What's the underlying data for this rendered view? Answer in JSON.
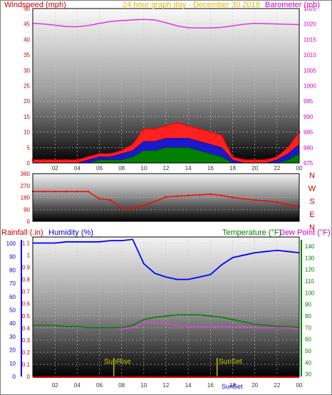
{
  "colors": {
    "wind": "#ff0000",
    "gust_fill": "#ff2020",
    "avg_fill": "#1a1acc",
    "low_fill": "#008000",
    "barometer": "#e040e0",
    "direction": "#ff0000",
    "humidity": "#0000ff",
    "temperature": "#008000",
    "dewpoint": "#e040e0",
    "title": "#e0b800",
    "axis_label_red": "#cc0000",
    "axis_label_blue": "#0000cc",
    "axis_label_green": "#008000",
    "axis_label_magenta": "#cc00cc",
    "sun_marker": "#c8c800"
  },
  "chart_data": [
    {
      "id": "wind_barometer",
      "type": "area",
      "title": "24 hour graph day - December 30 2018",
      "ylabel_left": "Windspeed (mph)",
      "ylabel_right": "Barometer (mb)",
      "ylim_left": [
        0,
        50
      ],
      "ylim_right": [
        975,
        1025
      ],
      "yticks_left": [
        "0",
        "5",
        "10",
        "15",
        "20",
        "25",
        "30",
        "35",
        "40",
        "45",
        "50"
      ],
      "yticks_right": [
        "975",
        "980",
        "985",
        "990",
        "995",
        "1000",
        "1005",
        "1010",
        "1015",
        "1020",
        "1025"
      ],
      "x_tick_labels": [
        "02",
        "04",
        "06",
        "08",
        "10",
        "12",
        "14",
        "16",
        "18",
        "20",
        "22",
        "00"
      ],
      "x": [
        0,
        1,
        2,
        3,
        4,
        5,
        6,
        7,
        8,
        9,
        10,
        11,
        12,
        13,
        14,
        15,
        16,
        17,
        18,
        19,
        20,
        21,
        22,
        23,
        24
      ],
      "series": [
        {
          "name": "Gust",
          "values": [
            1,
            1,
            1,
            1,
            1,
            2,
            3,
            3,
            4,
            6,
            11,
            11,
            12,
            13,
            12,
            11,
            10,
            9,
            2,
            1,
            1,
            1,
            2,
            5,
            10
          ]
        },
        {
          "name": "Average",
          "values": [
            0,
            0,
            0,
            0,
            0,
            1,
            2,
            2,
            3,
            4,
            7,
            7,
            8,
            8,
            8,
            7,
            6,
            5,
            1,
            0,
            0,
            0,
            1,
            3,
            6
          ]
        },
        {
          "name": "Low",
          "values": [
            0,
            0,
            0,
            0,
            0,
            0,
            1,
            1,
            1,
            2,
            4,
            4,
            5,
            5,
            5,
            4,
            3,
            2,
            0,
            0,
            0,
            0,
            0,
            1,
            3
          ]
        },
        {
          "name": "Barometer",
          "values": [
            1020.2,
            1020.0,
            1019.6,
            1019.2,
            1019.1,
            1019.5,
            1020.2,
            1020.8,
            1021.1,
            1021.3,
            1021.5,
            1021.3,
            1020.4,
            1019.4,
            1018.8,
            1018.7,
            1018.7,
            1018.9,
            1019.4,
            1019.9,
            1020.2,
            1020.1,
            1020.0,
            1019.9,
            1019.8
          ]
        }
      ]
    },
    {
      "id": "wind_direction",
      "type": "line",
      "yticks": [
        "0",
        "90",
        "180",
        "270",
        "360"
      ],
      "ylim": [
        0,
        360
      ],
      "compass_labels": [
        "N",
        "W",
        "S",
        "E",
        "N"
      ],
      "x": [
        0,
        1,
        2,
        3,
        4,
        5,
        6,
        7,
        8,
        9,
        10,
        11,
        12,
        13,
        14,
        15,
        16,
        17,
        18,
        19,
        20,
        21,
        22,
        23,
        24
      ],
      "series": [
        {
          "name": "Direction",
          "values": [
            225,
            225,
            225,
            225,
            225,
            225,
            170,
            160,
            100,
            100,
            120,
            150,
            185,
            190,
            195,
            200,
            205,
            195,
            180,
            170,
            160,
            155,
            145,
            125,
            115
          ]
        }
      ]
    },
    {
      "id": "humidity_temp",
      "type": "line",
      "ylabel_left_1": "Rainfall (.in)",
      "ylabel_left_2": "Humidity (%)",
      "ylabel_right_1": "Temperature (°F)",
      "ylabel_right_2": "Dew Point (°F)",
      "yticks_rain": [
        "0",
        "0.1",
        "0.2",
        "0.3",
        "0.4",
        "0.5",
        "0.6",
        "0.7",
        "0.8",
        "0.9",
        "1",
        "1.1"
      ],
      "yticks_humidity": [
        "0",
        "10",
        "20",
        "30",
        "40",
        "50",
        "60",
        "70",
        "80",
        "90",
        "100"
      ],
      "yticks_temp": [
        "30",
        "40",
        "50",
        "60",
        "70",
        "80",
        "90",
        "100",
        "110",
        "120",
        "130",
        "140"
      ],
      "ylim_rain": [
        0,
        1.15
      ],
      "ylim_temp": [
        28,
        148
      ],
      "x_tick_labels": [
        "02",
        "04",
        "06",
        "08",
        "10",
        "12",
        "14",
        "16",
        "18",
        "20",
        "22",
        "00"
      ],
      "x": [
        0,
        1,
        2,
        3,
        4,
        5,
        6,
        7,
        8,
        9,
        10,
        11,
        12,
        13,
        14,
        15,
        16,
        17,
        18,
        19,
        20,
        21,
        22,
        23,
        24
      ],
      "series": [
        {
          "name": "Humidity",
          "values": [
            1.1,
            1.1,
            1.1,
            1.11,
            1.11,
            1.11,
            1.11,
            1.12,
            1.12,
            1.13,
            0.93,
            0.85,
            0.82,
            0.8,
            0.8,
            0.82,
            0.84,
            0.92,
            0.98,
            1.0,
            1.02,
            1.03,
            1.04,
            1.03,
            1.02
          ]
        },
        {
          "name": "Temperature",
          "values": [
            72,
            72,
            72,
            71,
            71,
            70,
            70,
            70,
            70,
            72,
            77,
            79,
            80,
            81,
            81,
            81,
            80,
            79,
            77,
            75,
            73,
            72,
            71,
            71,
            70
          ]
        },
        {
          "name": "Dew Point",
          "values": [
            72,
            72,
            72,
            71,
            71,
            70,
            70,
            70,
            69,
            70,
            74,
            74,
            73,
            72,
            71,
            71,
            71,
            71,
            71,
            71,
            70,
            70,
            70,
            70,
            69
          ]
        },
        {
          "name": "Rainfall",
          "values": [
            0,
            0,
            0,
            0,
            0,
            0,
            0,
            0,
            0,
            0,
            0,
            0,
            0,
            0,
            0,
            0,
            0,
            0,
            0,
            0,
            0,
            0,
            0,
            0,
            0
          ]
        }
      ],
      "sun_labels": {
        "rise": "SunRise",
        "set": "SunSet",
        "set_bottom": "SunSet"
      },
      "sunrise_hour": 7.3,
      "sunset_hour": 16.6
    }
  ]
}
